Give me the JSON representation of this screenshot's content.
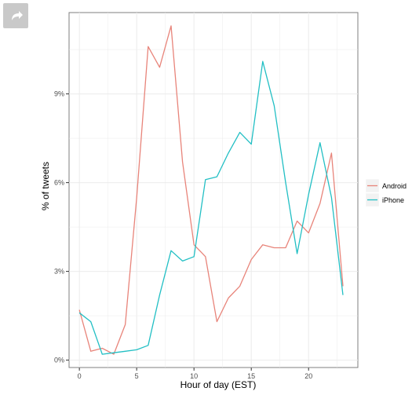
{
  "share_icon": "share-arrow-icon",
  "colors": {
    "android": "#e8847a",
    "iphone": "#22bfc4",
    "grid": "#ebebeb",
    "panel_border": "#7f7f7f"
  },
  "chart_data": {
    "type": "line",
    "xlabel": "Hour of day (EST)",
    "ylabel": "% of tweets",
    "xlim": [
      -0.9,
      24.3
    ],
    "ylim": [
      -0.25,
      11.75
    ],
    "x_ticks": [
      0,
      5,
      10,
      15,
      20
    ],
    "x_tick_labels": [
      "0",
      "5",
      "10",
      "15",
      "20"
    ],
    "y_ticks": [
      0,
      3,
      6,
      9
    ],
    "y_tick_labels": [
      "0%",
      "3%",
      "6%",
      "9%"
    ],
    "grid": true,
    "legend_position": "right",
    "x": [
      0,
      1,
      2,
      3,
      4,
      5,
      6,
      7,
      8,
      9,
      10,
      11,
      12,
      13,
      14,
      15,
      16,
      17,
      18,
      19,
      20,
      21,
      22,
      23
    ],
    "series": [
      {
        "name": "Android",
        "values": [
          1.7,
          0.3,
          0.4,
          0.2,
          1.2,
          5.5,
          10.6,
          9.9,
          11.3,
          6.7,
          3.9,
          3.5,
          1.3,
          2.1,
          2.5,
          3.4,
          3.9,
          3.8,
          3.8,
          4.7,
          4.3,
          5.3,
          7.0,
          2.5
        ]
      },
      {
        "name": "iPhone",
        "values": [
          1.6,
          1.3,
          0.2,
          0.25,
          0.3,
          0.35,
          0.5,
          2.2,
          3.7,
          3.35,
          3.5,
          6.1,
          6.2,
          7.0,
          7.7,
          7.3,
          10.1,
          8.6,
          6.0,
          3.6,
          5.6,
          7.35,
          5.5,
          2.2
        ]
      }
    ]
  }
}
